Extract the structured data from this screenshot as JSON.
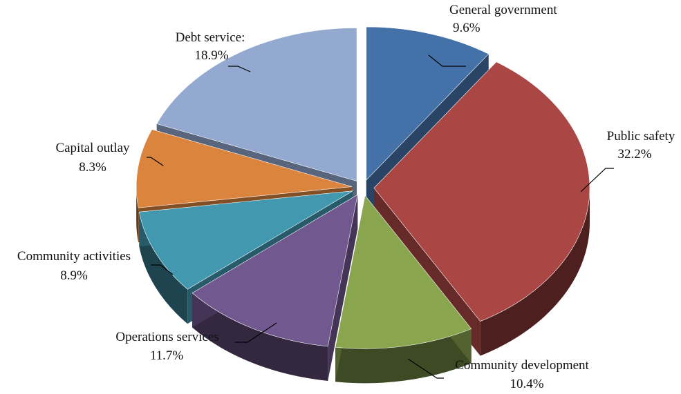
{
  "chart_data": {
    "type": "pie",
    "title": "",
    "slices": [
      {
        "name": "General government",
        "value_label": "9.6%",
        "value": 9.6,
        "color": "#4472a8"
      },
      {
        "name": "Public safety",
        "value_label": "32.2%",
        "value": 32.2,
        "color": "#aa4744"
      },
      {
        "name": "Community development",
        "value_label": "10.4%",
        "value": 10.4,
        "color": "#89a54e"
      },
      {
        "name": "Operations services",
        "value_label": "11.7%",
        "value": 11.7,
        "color": "#71588f"
      },
      {
        "name": "Community activities",
        "value_label": "8.9%",
        "value": 8.9,
        "color": "#4198af"
      },
      {
        "name": "Capital outlay",
        "value_label": "8.3%",
        "value": 8.3,
        "color": "#db843d"
      },
      {
        "name": "Debt service:",
        "value_label": "18.9%",
        "value": 18.9,
        "color": "#93a9cf"
      }
    ],
    "legend": "none",
    "style": "3d-exploded"
  }
}
